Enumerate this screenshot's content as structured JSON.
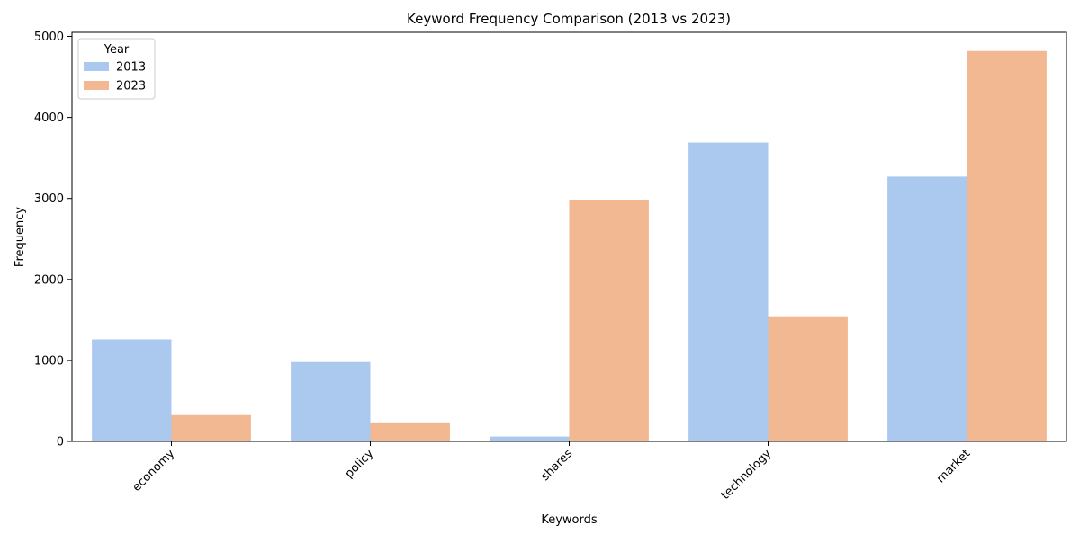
{
  "chart_data": {
    "type": "bar",
    "title": "Keyword Frequency Comparison (2013 vs 2023)",
    "xlabel": "Keywords",
    "ylabel": "Frequency",
    "categories": [
      "economy",
      "policy",
      "shares",
      "technology",
      "market"
    ],
    "series": [
      {
        "name": "2013",
        "values": [
          1260,
          980,
          60,
          3690,
          3270
        ],
        "color": "#abc9ee"
      },
      {
        "name": "2023",
        "values": [
          325,
          235,
          2980,
          1535,
          4820
        ],
        "color": "#f1b892"
      }
    ],
    "ylim": [
      0,
      5050
    ],
    "yticks": [
      0,
      1000,
      2000,
      3000,
      4000,
      5000
    ],
    "legend": {
      "title": "Year",
      "position": "top-left"
    },
    "grid": false,
    "xtick_rotation": 45
  }
}
